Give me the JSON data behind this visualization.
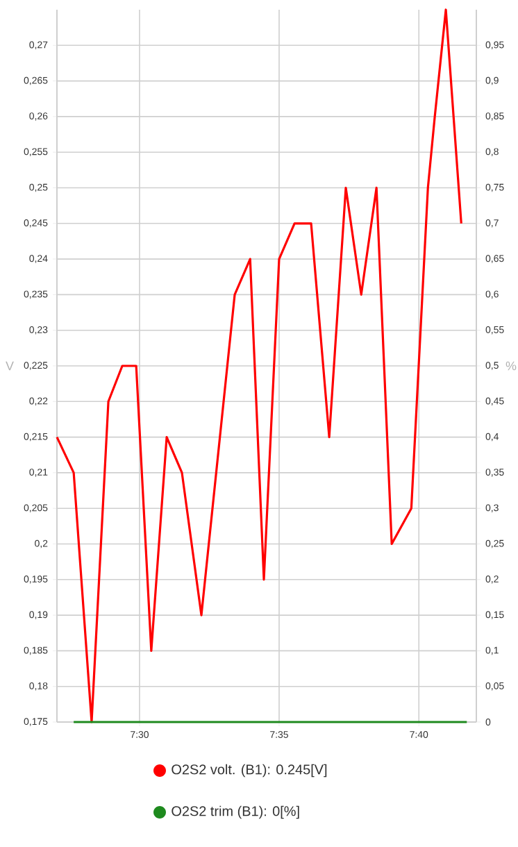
{
  "chart_data": {
    "type": "line",
    "ylabel": "V",
    "y2label": "%",
    "xlim": [
      7.4507,
      7.701
    ],
    "ylim": [
      0.175,
      0.275
    ],
    "y2lim": [
      0,
      1
    ],
    "xticks": [
      {
        "value": 7.5,
        "label": "7:30"
      },
      {
        "value": 7.5833,
        "label": "7:35"
      },
      {
        "value": 7.6667,
        "label": "7:40"
      }
    ],
    "yticks": [
      {
        "value": 0.175,
        "label": "0,175"
      },
      {
        "value": 0.18,
        "label": "0,18"
      },
      {
        "value": 0.185,
        "label": "0,185"
      },
      {
        "value": 0.19,
        "label": "0,19"
      },
      {
        "value": 0.195,
        "label": "0,195"
      },
      {
        "value": 0.2,
        "label": "0,2"
      },
      {
        "value": 0.205,
        "label": "0,205"
      },
      {
        "value": 0.21,
        "label": "0,21"
      },
      {
        "value": 0.215,
        "label": "0,215"
      },
      {
        "value": 0.22,
        "label": "0,22"
      },
      {
        "value": 0.225,
        "label": "0,225"
      },
      {
        "value": 0.23,
        "label": "0,23"
      },
      {
        "value": 0.235,
        "label": "0,235"
      },
      {
        "value": 0.24,
        "label": "0,24"
      },
      {
        "value": 0.245,
        "label": "0,245"
      },
      {
        "value": 0.25,
        "label": "0,25"
      },
      {
        "value": 0.255,
        "label": "0,255"
      },
      {
        "value": 0.26,
        "label": "0,26"
      },
      {
        "value": 0.265,
        "label": "0,265"
      },
      {
        "value": 0.27,
        "label": "0,27"
      }
    ],
    "y2ticks": [
      0,
      {
        "value": 0.05,
        "label": "0,05"
      },
      {
        "value": 0.1,
        "label": "0,1"
      },
      {
        "value": 0.15,
        "label": "0,15"
      },
      {
        "value": 0.2,
        "label": "0,2"
      },
      {
        "value": 0.25,
        "label": "0,25"
      },
      {
        "value": 0.3,
        "label": "0,3"
      },
      {
        "value": 0.35,
        "label": "0,35"
      },
      {
        "value": 0.4,
        "label": "0,4"
      },
      {
        "value": 0.45,
        "label": "0,45"
      },
      {
        "value": 0.5,
        "label": "0,5"
      },
      {
        "value": 0.55,
        "label": "0,55"
      },
      {
        "value": 0.6,
        "label": "0,6"
      },
      {
        "value": 0.65,
        "label": "0,65"
      },
      {
        "value": 0.7,
        "label": "0,7"
      },
      {
        "value": 0.75,
        "label": "0,75"
      },
      {
        "value": 0.8,
        "label": "0,8"
      },
      {
        "value": 0.85,
        "label": "0,85"
      },
      {
        "value": 0.9,
        "label": "0,9"
      },
      {
        "value": 0.95,
        "label": "0,95"
      }
    ],
    "grid": true,
    "legend": "bottom",
    "marker": "none",
    "line_style": "solid",
    "series": [
      {
        "name": "O2S2 volt. (B1): 0.245[V]",
        "color": "#ff0000",
        "x": [
          7.4507,
          7.4607,
          7.4714,
          7.4814,
          7.4897,
          7.498,
          7.507,
          7.5162,
          7.5253,
          7.5369,
          7.5568,
          7.566,
          7.5742,
          7.5833,
          7.5925,
          7.6024,
          7.6132,
          7.6231,
          7.6323,
          7.6414,
          7.6505,
          7.6622,
          7.6721,
          7.6762,
          7.6828,
          7.692
        ],
        "values": [
          0.215,
          0.21,
          0.175,
          0.22,
          0.225,
          0.225,
          0.185,
          0.215,
          0.21,
          0.19,
          0.235,
          0.24,
          0.195,
          0.24,
          0.245,
          0.245,
          0.215,
          0.25,
          0.235,
          0.25,
          0.2,
          0.205,
          0.25,
          0.26,
          0.275,
          0.245
        ]
      },
      {
        "name": "O2S2 trim (B1): 0[%]",
        "color": "#1e8a1e",
        "axis": "y2",
        "x": [
          7.4607,
          7.6953
        ],
        "values": [
          0,
          0
        ]
      }
    ]
  }
}
